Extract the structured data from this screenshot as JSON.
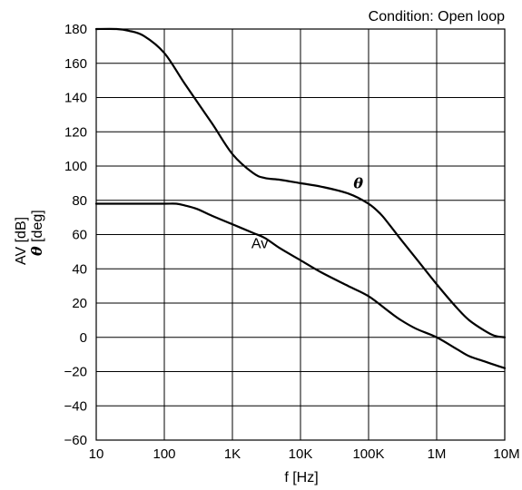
{
  "chart_data": {
    "type": "line",
    "x_scale": "log",
    "xlim": [
      10,
      10000000
    ],
    "ylim": [
      -60,
      180
    ],
    "y_ticks": [
      -60,
      -40,
      -20,
      0,
      20,
      40,
      60,
      80,
      100,
      120,
      140,
      160,
      180
    ],
    "y_tick_labels": [
      "−60",
      "−40",
      "−20",
      "0",
      "20",
      "40",
      "60",
      "80",
      "100",
      "120",
      "140",
      "160",
      "180"
    ],
    "x_ticks": [
      10,
      100,
      1000,
      10000,
      100000,
      1000000,
      10000000
    ],
    "x_tick_labels": [
      "10",
      "100",
      "1K",
      "10K",
      "100K",
      "1M",
      "10M"
    ],
    "xlabel": "f [Hz]",
    "ylabel_line1": "AV  [dB]",
    "ylabel_theta_symbol": "θ",
    "ylabel_line2": "  [deg]",
    "condition": "Condition: Open loop",
    "grid": true,
    "series": [
      {
        "name": "θ",
        "x": [
          10,
          20,
          30,
          50,
          100,
          200,
          500,
          1000,
          2000,
          3000,
          5000,
          10000,
          20000,
          50000,
          100000,
          150000,
          200000,
          300000,
          500000,
          1000000,
          2000000,
          3000000,
          5000000,
          7000000,
          10000000
        ],
        "y": [
          180,
          180,
          179,
          176,
          166,
          148,
          125,
          107,
          96,
          93,
          92,
          90,
          88,
          84,
          78,
          72,
          66,
          57,
          46,
          31,
          17,
          10,
          4,
          1,
          0
        ]
      },
      {
        "name": "Av",
        "x": [
          10,
          20,
          50,
          100,
          150,
          200,
          300,
          500,
          1000,
          2000,
          3000,
          5000,
          10000,
          20000,
          50000,
          100000,
          200000,
          300000,
          500000,
          1000000,
          2000000,
          3000000,
          5000000,
          7000000,
          10000000
        ],
        "y": [
          78,
          78,
          78,
          78,
          78,
          77,
          75,
          71,
          66,
          61,
          58,
          52,
          45,
          38,
          30,
          24,
          15,
          10,
          5,
          0,
          -7,
          -11,
          -14,
          -16,
          -18
        ]
      }
    ],
    "annotations": [
      {
        "text": "θ",
        "x": 60000,
        "y": 87
      },
      {
        "text": "Av",
        "x": 1900,
        "y": 52
      }
    ]
  }
}
